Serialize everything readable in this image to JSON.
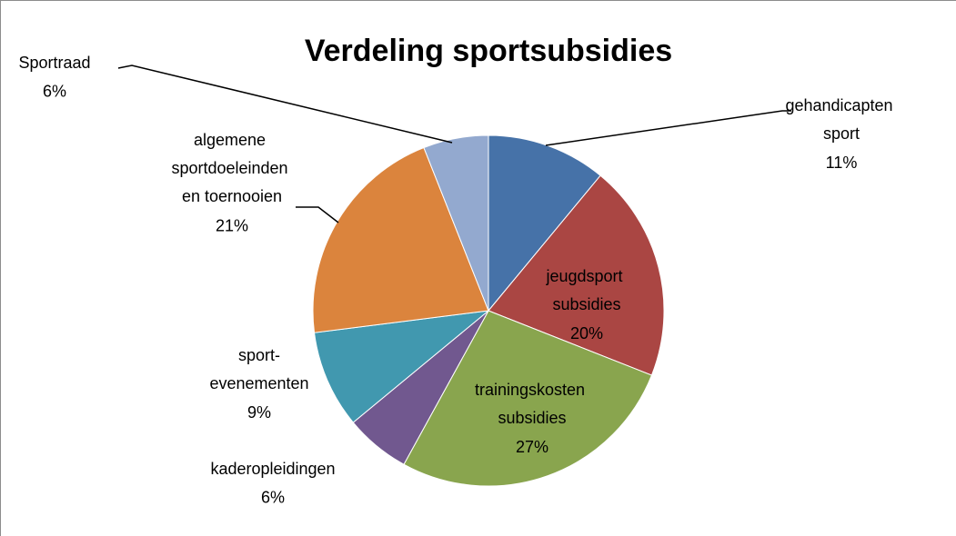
{
  "chart_data": {
    "type": "pie",
    "title": "Verdeling sportsubsidies",
    "categories": [
      "gehandicapten sport",
      "jeugdsport subsidies",
      "trainingskosten subsidies",
      "kaderopleidingen",
      "sport-evenementen",
      "algemene sportdoeleinden en toernooien",
      "Sportraad"
    ],
    "values": [
      11,
      20,
      27,
      6,
      9,
      21,
      6
    ],
    "value_labels": [
      "11%",
      "20%",
      "27%",
      "6%",
      "9%",
      "21%",
      "6%"
    ],
    "colors": [
      "#4672a8",
      "#aa4643",
      "#89a54e",
      "#71588f",
      "#4198af",
      "#db843d",
      "#93a9cf"
    ]
  }
}
